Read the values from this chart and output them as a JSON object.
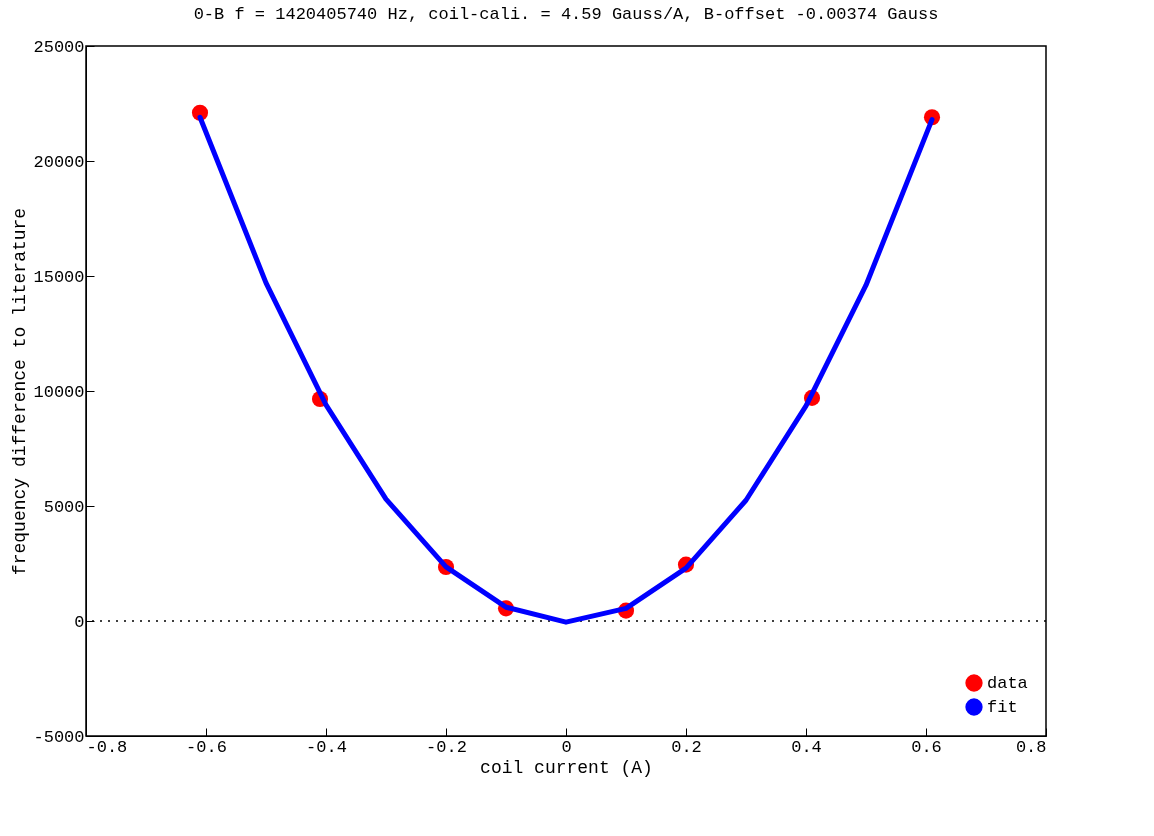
{
  "chart_data": {
    "type": "scatter",
    "title": "0-B f = 1420405740 Hz, coil-cali. = 4.59 Gauss/A, B-offset -0.00374 Gauss",
    "xlabel": "coil current (A)",
    "ylabel": "frequency difference to literature",
    "xlim": [
      -0.8,
      0.8
    ],
    "xticks": [
      -0.8,
      -0.6,
      -0.4,
      -0.2,
      0,
      0.2,
      0.4,
      0.6,
      0.8
    ],
    "ylim": [
      -5000,
      25000
    ],
    "yticks": [
      -5000,
      0,
      5000,
      10000,
      15000,
      20000,
      25000
    ],
    "grid": false,
    "legend": "bottom right",
    "ref_lines": [
      {
        "axis": "y",
        "value": 0,
        "line_style": "dotted",
        "color": "#000000"
      }
    ],
    "series": [
      {
        "name": "data",
        "type": "scatter",
        "color": "#ff0000",
        "marker": "circle",
        "x": [
          -0.61,
          -0.41,
          -0.2,
          -0.1,
          0.1,
          0.2,
          0.41,
          0.61
        ],
        "values": [
          22100,
          9650,
          2350,
          550,
          450,
          2450,
          9700,
          21900
        ]
      },
      {
        "name": "fit",
        "type": "line",
        "color": "#0000ff",
        "line_style": "solid",
        "x": [
          -0.61,
          -0.5,
          -0.4,
          -0.3,
          -0.2,
          -0.1,
          0,
          0.1,
          0.2,
          0.3,
          0.4,
          0.5,
          0.61
        ],
        "values": [
          21900,
          14700,
          9400,
          5300,
          2350,
          600,
          -50,
          550,
          2300,
          5250,
          9350,
          14600,
          21800
        ]
      }
    ]
  }
}
